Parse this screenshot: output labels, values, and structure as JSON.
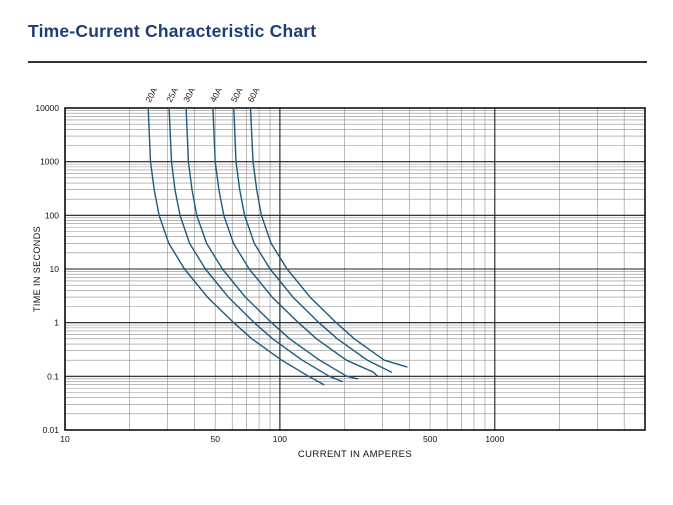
{
  "page": {
    "title": "Time-Current Characteristic Chart"
  },
  "colors": {
    "title": "#1e3c78",
    "divider": "#2f3338",
    "curve": "#1d5a7e",
    "grid_minor": "#8f8f8f",
    "grid_major": "#1c1c1c",
    "axis_text": "#111111"
  },
  "chart_data": {
    "type": "line",
    "title": "Time-Current Characteristic Chart",
    "xlabel": "CURRENT IN AMPERES",
    "ylabel": "TIME IN SECONDS",
    "x_scale": "log",
    "y_scale": "log",
    "xlim": [
      10,
      5000
    ],
    "ylim": [
      0.01,
      10000
    ],
    "x_tick_labels": [
      "10",
      "50",
      "100",
      "500",
      "1000"
    ],
    "x_tick_values": [
      10,
      50,
      100,
      500,
      1000
    ],
    "y_tick_labels": [
      "10000",
      "1000",
      "100",
      "10",
      "1",
      "0.1",
      "0.01"
    ],
    "y_tick_values": [
      10000,
      1000,
      100,
      10,
      1,
      0.1,
      0.01
    ],
    "grid": "log-log with minor lines, legend none",
    "line_color": "#1d5a7e",
    "series": [
      {
        "name": "20A",
        "points": [
          [
            24.4,
            10000
          ],
          [
            25,
            1000
          ],
          [
            26,
            300
          ],
          [
            27.4,
            100
          ],
          [
            30.4,
            30
          ],
          [
            36,
            10
          ],
          [
            46,
            3
          ],
          [
            61,
            1
          ],
          [
            74,
            0.5
          ],
          [
            102,
            0.2
          ],
          [
            136,
            0.1
          ],
          [
            160,
            0.07
          ]
        ]
      },
      {
        "name": "25A",
        "points": [
          [
            30.5,
            10000
          ],
          [
            31.3,
            1000
          ],
          [
            32.5,
            300
          ],
          [
            34.3,
            100
          ],
          [
            38,
            30
          ],
          [
            45,
            10
          ],
          [
            57.5,
            3
          ],
          [
            76,
            1
          ],
          [
            92.5,
            0.5
          ],
          [
            127,
            0.2
          ],
          [
            170,
            0.1
          ],
          [
            195,
            0.08
          ]
        ]
      },
      {
        "name": "30A",
        "points": [
          [
            36.6,
            10000
          ],
          [
            37.5,
            1000
          ],
          [
            39,
            300
          ],
          [
            41,
            100
          ],
          [
            45.6,
            30
          ],
          [
            54,
            10
          ],
          [
            69,
            3
          ],
          [
            91.5,
            1
          ],
          [
            111,
            0.5
          ],
          [
            153,
            0.2
          ],
          [
            205,
            0.1
          ],
          [
            230,
            0.09
          ]
        ]
      },
      {
        "name": "40A",
        "points": [
          [
            48.8,
            10000
          ],
          [
            50,
            1000
          ],
          [
            52,
            300
          ],
          [
            54.8,
            100
          ],
          [
            60.8,
            30
          ],
          [
            72,
            10
          ],
          [
            92,
            3
          ],
          [
            122,
            1
          ],
          [
            148,
            0.5
          ],
          [
            204,
            0.2
          ],
          [
            272,
            0.12
          ],
          [
            285,
            0.1
          ]
        ]
      },
      {
        "name": "50A",
        "points": [
          [
            61,
            10000
          ],
          [
            62.5,
            1000
          ],
          [
            65,
            300
          ],
          [
            68.5,
            100
          ],
          [
            76,
            30
          ],
          [
            90,
            10
          ],
          [
            115,
            3
          ],
          [
            152,
            1
          ],
          [
            185,
            0.5
          ],
          [
            255,
            0.2
          ],
          [
            330,
            0.12
          ]
        ]
      },
      {
        "name": "60A",
        "points": [
          [
            73,
            10000
          ],
          [
            75,
            1000
          ],
          [
            78,
            300
          ],
          [
            82,
            100
          ],
          [
            91,
            30
          ],
          [
            108,
            10
          ],
          [
            138,
            3
          ],
          [
            183,
            1
          ],
          [
            222,
            0.5
          ],
          [
            306,
            0.2
          ],
          [
            390,
            0.15
          ]
        ]
      }
    ]
  }
}
